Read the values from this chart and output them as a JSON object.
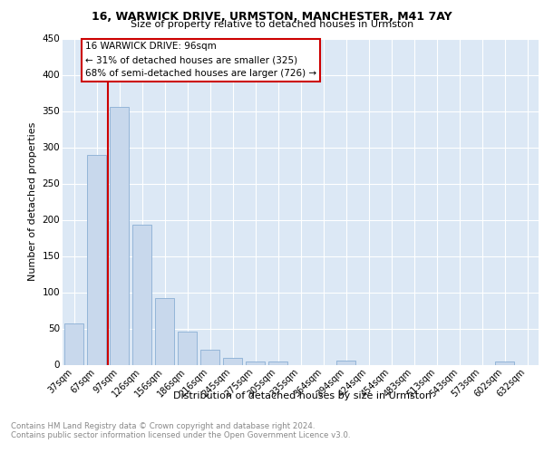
{
  "title1": "16, WARWICK DRIVE, URMSTON, MANCHESTER, M41 7AY",
  "title2": "Size of property relative to detached houses in Urmston",
  "xlabel": "Distribution of detached houses by size in Urmston",
  "ylabel": "Number of detached properties",
  "footnote": "Contains HM Land Registry data © Crown copyright and database right 2024.\nContains public sector information licensed under the Open Government Licence v3.0.",
  "bar_labels": [
    "37sqm",
    "67sqm",
    "97sqm",
    "126sqm",
    "156sqm",
    "186sqm",
    "216sqm",
    "245sqm",
    "275sqm",
    "305sqm",
    "335sqm",
    "364sqm",
    "394sqm",
    "424sqm",
    "454sqm",
    "483sqm",
    "513sqm",
    "543sqm",
    "573sqm",
    "602sqm",
    "632sqm"
  ],
  "bar_values": [
    57,
    290,
    356,
    193,
    92,
    46,
    21,
    10,
    5,
    5,
    0,
    0,
    6,
    0,
    0,
    0,
    0,
    0,
    0,
    5,
    0
  ],
  "bar_color": "#c8d8ec",
  "bar_edge_color": "#8aaed4",
  "property_label": "16 WARWICK DRIVE: 96sqm",
  "annotation_line1": "← 31% of detached houses are smaller (325)",
  "annotation_line2": "68% of semi-detached houses are larger (726) →",
  "vline_color": "#cc0000",
  "box_edge_color": "#cc0000",
  "ylim": [
    0,
    450
  ],
  "yticks": [
    0,
    50,
    100,
    150,
    200,
    250,
    300,
    350,
    400,
    450
  ],
  "fig_bg_color": "#ffffff",
  "plot_bg_color": "#dce8f5",
  "grid_color": "#ffffff"
}
